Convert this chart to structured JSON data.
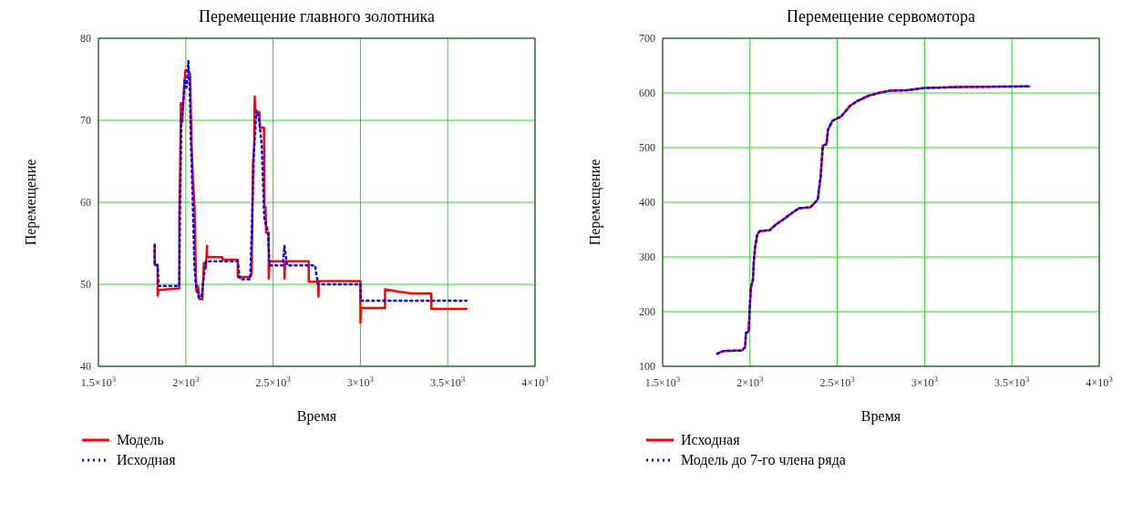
{
  "chart_data": [
    {
      "type": "line",
      "title": "Перемещение главного золотника",
      "xlabel": "Время",
      "ylabel": "Перемещение",
      "xlim": [
        1500,
        4000
      ],
      "xticks": [
        {
          "value": 1500,
          "label": "1.5×10$^{3}$"
        },
        {
          "value": 2000,
          "label": "2×10$^{3}$"
        },
        {
          "value": 2500,
          "label": "2.5×10$^{3}$"
        },
        {
          "value": 3000,
          "label": "3×10$^{3}$"
        },
        {
          "value": 3500,
          "label": "3.5×10$^{3}$"
        },
        {
          "value": 4000,
          "label": "4×10$^{3}$"
        }
      ],
      "ylim": [
        40,
        80
      ],
      "yticks": [
        40,
        50,
        60,
        70,
        80
      ],
      "grid": true,
      "legend": "bottom left",
      "marker": "none",
      "series": [
        {
          "name": "Модель",
          "color": "#ff0000",
          "line_style": "solid",
          "x": [
            1822,
            1822,
            1839,
            1839,
            1845,
            1963,
            1963,
            1968,
            1972,
            1980,
            1990,
            1998,
            2016,
            2025,
            2033,
            2042,
            2050,
            2060,
            2070,
            2078,
            2095,
            2104,
            2115,
            2122,
            2122,
            2210,
            2210,
            2298,
            2298,
            2369,
            2377,
            2380,
            2385,
            2392,
            2395,
            2398,
            2422,
            2425,
            2448,
            2450,
            2457,
            2460,
            2475,
            2475,
            2480,
            2565,
            2565,
            2570,
            2704,
            2704,
            2757,
            2760,
            2762,
            3000,
            3000,
            3003,
            3141,
            3141,
            3215,
            3294,
            3406,
            3406,
            3607
          ],
          "values": [
            54.8,
            52.4,
            52.4,
            48.6,
            49.3,
            49.5,
            58,
            64.3,
            72.1,
            69.8,
            74,
            76.1,
            76.1,
            75.5,
            67.4,
            62.2,
            59.4,
            49.3,
            49.8,
            48.2,
            48.2,
            52.6,
            52,
            54.7,
            53.3,
            53.3,
            53,
            53,
            50.9,
            50.9,
            51.3,
            55.6,
            64.8,
            67,
            72.9,
            71,
            71,
            69.1,
            69.1,
            59.4,
            59.4,
            56.3,
            56.3,
            50.7,
            52.8,
            52.8,
            50.7,
            52.8,
            52.8,
            50.3,
            50.3,
            48.5,
            50.4,
            50.4,
            45.3,
            47.1,
            47.1,
            49.4,
            49.1,
            48.9,
            48.9,
            47,
            47
          ]
        },
        {
          "name": "Исходная",
          "color": "#0000ff",
          "line_style": "dotted",
          "x": [
            1822,
            1822,
            1839,
            1845,
            1963,
            1968,
            1975,
            1985,
            1995,
            2005,
            2015,
            2022,
            2030,
            2040,
            2050,
            2060,
            2075,
            2090,
            2104,
            2115,
            2298,
            2310,
            2369,
            2380,
            2390,
            2405,
            2420,
            2435,
            2450,
            2470,
            2480,
            2555,
            2565,
            2580,
            2740,
            2757,
            3000,
            3003,
            3607
          ],
          "values": [
            54.8,
            52.3,
            52.3,
            49.8,
            49.8,
            60,
            70,
            72,
            75,
            74,
            77.2,
            74,
            67,
            60,
            52,
            49.5,
            48.4,
            48.4,
            51,
            52.8,
            52.8,
            50.6,
            50.6,
            58,
            66,
            71.2,
            70,
            67,
            58,
            56.5,
            52.3,
            52.3,
            54.7,
            52.3,
            52.3,
            50,
            50,
            48,
            48
          ]
        }
      ]
    },
    {
      "type": "line",
      "title": "Перемещение сервомотора",
      "xlabel": "Время",
      "ylabel": "Перемещение",
      "xlim": [
        1500,
        4000
      ],
      "xticks": [
        {
          "value": 1500,
          "label": "1.5×10$^{3}$"
        },
        {
          "value": 2000,
          "label": "2×10$^{3}$"
        },
        {
          "value": 2500,
          "label": "2.5×10$^{3}$"
        },
        {
          "value": 3000,
          "label": "3×10$^{3}$"
        },
        {
          "value": 3500,
          "label": "3.5×10$^{3}$"
        },
        {
          "value": 4000,
          "label": "4×10$^{3}$"
        }
      ],
      "ylim": [
        100,
        700
      ],
      "yticks": [
        100,
        200,
        300,
        400,
        500,
        600,
        700
      ],
      "grid": true,
      "legend": "bottom left",
      "marker": "none",
      "series": [
        {
          "name": "Исходная",
          "color": "#ff0000",
          "line_style": "solid",
          "x": [
            1813,
            1847,
            1955,
            1972,
            1977,
            1993,
            1997,
            2005,
            2017,
            2022,
            2030,
            2042,
            2055,
            2113,
            2147,
            2197,
            2238,
            2280,
            2347,
            2388,
            2405,
            2417,
            2438,
            2447,
            2472,
            2522,
            2572,
            2613,
            2680,
            2738,
            2797,
            2900,
            3000,
            3200,
            3600
          ],
          "values": [
            123,
            128,
            129,
            135,
            161,
            164,
            196,
            244,
            258,
            292,
            319,
            341,
            347,
            349,
            359,
            370,
            380,
            389,
            391,
            405,
            448,
            504,
            506,
            533,
            549,
            557,
            576,
            585,
            595,
            600,
            604,
            605,
            609,
            611,
            612
          ]
        },
        {
          "name": "Модель до 7-го члена ряда",
          "color": "#0000ff",
          "line_style": "dotted",
          "x": [
            1813,
            1847,
            1955,
            1972,
            1977,
            1993,
            1997,
            2005,
            2017,
            2022,
            2030,
            2042,
            2055,
            2113,
            2147,
            2197,
            2238,
            2280,
            2347,
            2388,
            2405,
            2417,
            2438,
            2447,
            2472,
            2522,
            2572,
            2613,
            2680,
            2738,
            2797,
            2900,
            3000,
            3200,
            3600
          ],
          "values": [
            123,
            128,
            129,
            135,
            161,
            164,
            196,
            244,
            258,
            292,
            319,
            341,
            347,
            349,
            359,
            370,
            380,
            389,
            391,
            405,
            448,
            504,
            506,
            533,
            549,
            557,
            576,
            585,
            595,
            600,
            604,
            605,
            609,
            611,
            612
          ]
        }
      ]
    }
  ]
}
